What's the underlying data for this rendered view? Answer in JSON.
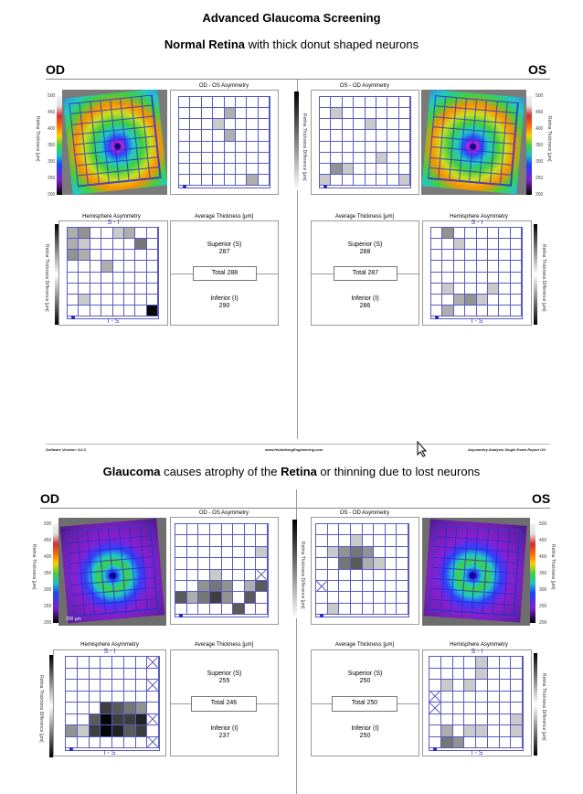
{
  "title": "Advanced Glaucoma Screening",
  "subtitle_1": {
    "bold": "Normal Retina",
    "rest": " with thick donut shaped neurons"
  },
  "subtitle_2": {
    "bold1": "Glaucoma",
    "mid": " causes atrophy of the ",
    "bold2": "Retina",
    "rest": " or thinning due to lost neurons"
  },
  "eye_left": "OD",
  "eye_right": "OS",
  "panel_labels": {
    "od_os_asym": "OD - OS Asymmetry",
    "os_od_asym": "OS - OD Asymmetry",
    "hemi_asym": "Hemisphere Asymmetry",
    "avg_thickness": "Average Thickness [µm]",
    "retina_thickness": "Retina Thickness [µm]",
    "retina_thickness_diff": "Retina Thickness Difference [µm]",
    "s_i": "S - I",
    "i_s": "I - S",
    "scale_um": "200 µm"
  },
  "thickness_ticks": [
    "500",
    "450",
    "400",
    "350",
    "300",
    "250",
    "200"
  ],
  "diff_ticks": [
    "-30",
    "-20",
    "-10",
    "0"
  ],
  "diff_ticks_hemi": [
    "-30",
    "-20",
    "-10",
    "0"
  ],
  "normal": {
    "od_avg": {
      "superior_label": "Superior (S)",
      "superior": "287",
      "total": "Total 288",
      "inferior_label": "Inferior (I)",
      "inferior": "290"
    },
    "os_avg": {
      "superior_label": "Superior (S)",
      "superior": "288",
      "total": "Total 287",
      "inferior_label": "Inferior (I)",
      "inferior": "286"
    }
  },
  "glaucoma": {
    "od_avg": {
      "superior_label": "Superior (S)",
      "superior": "255",
      "total": "Total 246",
      "inferior_label": "Inferior (I)",
      "inferior": "237"
    },
    "os_avg": {
      "superior_label": "Superior (S)",
      "superior": "250",
      "total": "Total 250",
      "inferior_label": "Inferior (I)",
      "inferior": "250"
    }
  },
  "footer": {
    "left": "Software Version: 6.0.3",
    "center": "www.HeidelbergEngineering.com",
    "right": "Asymmetry Analysis Single Exam Report OU"
  },
  "grids": {
    "n_od_asym": [
      0,
      0,
      0,
      0,
      0,
      0,
      0,
      0,
      0,
      0,
      0,
      0,
      2,
      0,
      0,
      0,
      0,
      0,
      0,
      1,
      0,
      0,
      0,
      0,
      0,
      0,
      0,
      0,
      2,
      0,
      0,
      0,
      0,
      0,
      0,
      0,
      0,
      0,
      0,
      0,
      0,
      0,
      0,
      0,
      0,
      0,
      0,
      0,
      0,
      0,
      0,
      0,
      0,
      0,
      0,
      0,
      0,
      0,
      0,
      0,
      0,
      0,
      2,
      0
    ],
    "n_os_asym": [
      0,
      0,
      0,
      0,
      0,
      0,
      0,
      0,
      0,
      1,
      0,
      0,
      0,
      0,
      0,
      0,
      0,
      0,
      0,
      0,
      1,
      0,
      0,
      0,
      0,
      0,
      0,
      0,
      0,
      0,
      0,
      0,
      0,
      0,
      0,
      0,
      0,
      0,
      0,
      0,
      0,
      0,
      0,
      0,
      0,
      1,
      0,
      0,
      0,
      3,
      1,
      0,
      0,
      0,
      0,
      0,
      1,
      0,
      0,
      0,
      0,
      0,
      0,
      1
    ],
    "n_od_hemi": [
      2,
      3,
      0,
      0,
      1,
      2,
      0,
      0,
      2,
      1,
      0,
      0,
      0,
      0,
      4,
      0,
      3,
      2,
      0,
      0,
      0,
      0,
      0,
      0,
      0,
      0,
      0,
      2,
      0,
      0,
      0,
      0,
      0,
      0,
      0,
      0,
      0,
      0,
      0,
      0,
      0,
      0,
      0,
      0,
      0,
      0,
      0,
      0,
      0,
      1,
      0,
      0,
      0,
      0,
      0,
      0,
      0,
      0,
      0,
      0,
      0,
      0,
      0,
      8
    ],
    "n_os_hemi": [
      0,
      3,
      0,
      0,
      0,
      0,
      0,
      0,
      0,
      0,
      1,
      0,
      0,
      0,
      0,
      0,
      0,
      0,
      0,
      0,
      0,
      0,
      0,
      0,
      0,
      0,
      0,
      0,
      0,
      0,
      0,
      0,
      0,
      0,
      0,
      0,
      0,
      0,
      0,
      0,
      0,
      1,
      0,
      0,
      0,
      1,
      0,
      0,
      0,
      0,
      2,
      3,
      1,
      0,
      0,
      0,
      0,
      2,
      0,
      0,
      0,
      0,
      0,
      0
    ],
    "g_od_asym": [
      0,
      0,
      0,
      0,
      0,
      0,
      0,
      0,
      0,
      0,
      0,
      0,
      0,
      0,
      0,
      0,
      0,
      0,
      0,
      0,
      0,
      0,
      0,
      1,
      0,
      0,
      0,
      0,
      0,
      0,
      0,
      0,
      0,
      0,
      0,
      1,
      0,
      0,
      0,
      9,
      0,
      0,
      3,
      4,
      3,
      0,
      2,
      5,
      5,
      2,
      4,
      6,
      3,
      0,
      5,
      0,
      0,
      0,
      0,
      0,
      0,
      5,
      0,
      0
    ],
    "g_os_asym": [
      0,
      0,
      0,
      0,
      0,
      0,
      0,
      0,
      0,
      0,
      0,
      1,
      0,
      0,
      0,
      0,
      0,
      1,
      3,
      4,
      3,
      0,
      0,
      0,
      0,
      0,
      4,
      5,
      2,
      1,
      0,
      0,
      0,
      0,
      0,
      0,
      0,
      0,
      0,
      0,
      9,
      0,
      0,
      0,
      0,
      0,
      0,
      0,
      0,
      0,
      0,
      0,
      0,
      0,
      0,
      0,
      0,
      1,
      0,
      0,
      0,
      0,
      0,
      0
    ],
    "g_od_hemi": [
      0,
      0,
      0,
      0,
      0,
      0,
      0,
      9,
      0,
      0,
      0,
      0,
      0,
      0,
      0,
      0,
      0,
      0,
      0,
      0,
      0,
      0,
      0,
      9,
      0,
      0,
      0,
      0,
      0,
      0,
      0,
      0,
      0,
      0,
      0,
      6,
      5,
      4,
      3,
      0,
      0,
      0,
      5,
      8,
      6,
      6,
      7,
      9,
      3,
      1,
      6,
      8,
      7,
      5,
      6,
      0,
      0,
      0,
      0,
      0,
      0,
      0,
      0,
      9
    ],
    "g_os_hemi": [
      0,
      0,
      0,
      0,
      1,
      0,
      0,
      0,
      0,
      0,
      0,
      0,
      1,
      0,
      0,
      0,
      0,
      1,
      0,
      1,
      0,
      0,
      0,
      0,
      9,
      0,
      0,
      0,
      0,
      0,
      0,
      0,
      9,
      0,
      0,
      0,
      0,
      0,
      0,
      0,
      0,
      0,
      0,
      0,
      0,
      0,
      0,
      1,
      0,
      2,
      0,
      1,
      1,
      0,
      0,
      1,
      0,
      4,
      3,
      0,
      0,
      0,
      0,
      0
    ]
  }
}
